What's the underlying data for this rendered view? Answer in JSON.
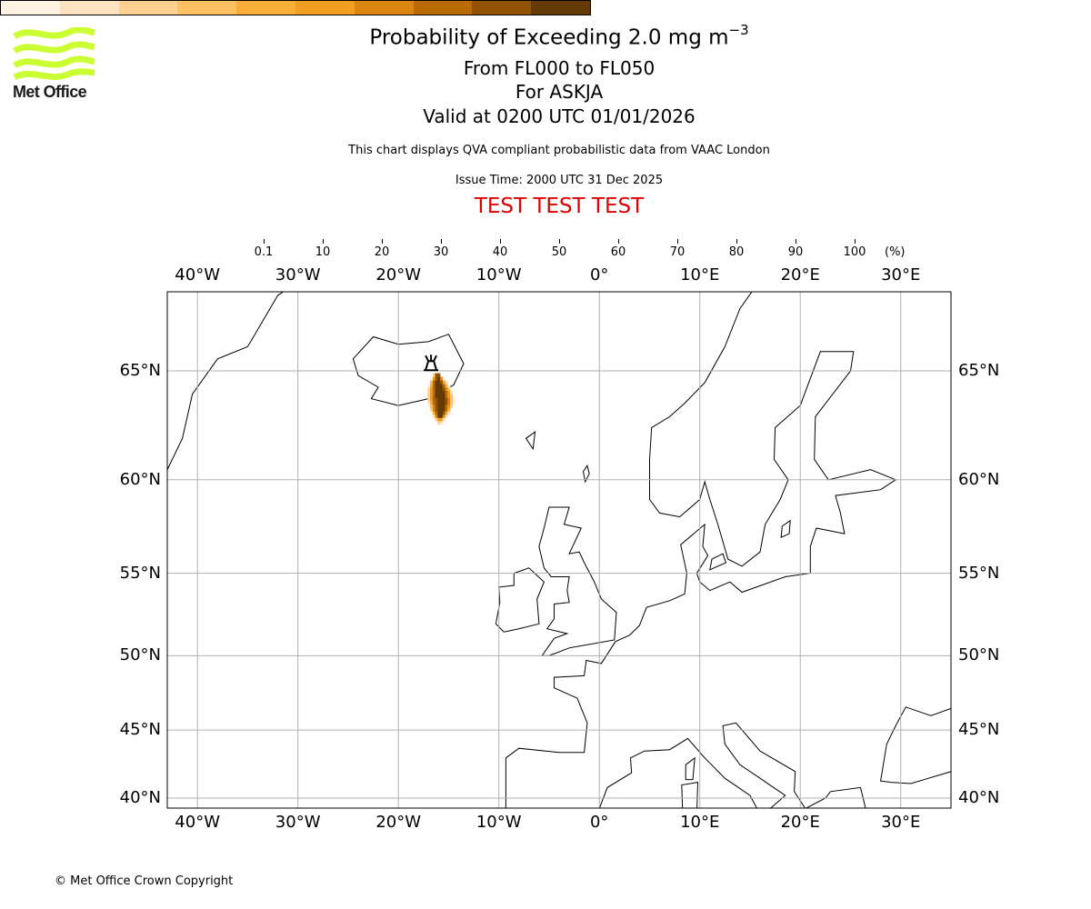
{
  "logo": {
    "text": "Met Office",
    "color": "#ccff33"
  },
  "header": {
    "title_main": "Probability of Exceeding 2.0 mg m",
    "title_sup": "−3",
    "level_range": "From FL000 to FL050",
    "volcano": "For ASKJA",
    "valid_time": "Valid at 0200 UTC 01/01/2026",
    "description": "This chart displays QVA compliant probabilistic data from VAAC London",
    "issue_time": "Issue Time: 2000 UTC 31 Dec 2025",
    "test_banner": "TEST TEST TEST"
  },
  "chart_data": {
    "type": "heatmap",
    "title": "Probability of Exceeding 2.0 mg m−3",
    "colorbar": {
      "unit": "(%)",
      "ticks": [
        "0.1",
        "10",
        "20",
        "30",
        "40",
        "50",
        "60",
        "70",
        "80",
        "90",
        "100"
      ],
      "colors": [
        "#fef3e2",
        "#fde3c1",
        "#fdd08f",
        "#fdc062",
        "#fbad3a",
        "#f29e21",
        "#da8610",
        "#ba6b05",
        "#925404",
        "#633a05"
      ]
    },
    "projection": "Mercator",
    "lon_range": [
      -43,
      35
    ],
    "lat_range": [
      39.2,
      68.3
    ],
    "lon_ticks": [
      -40,
      -30,
      -20,
      -10,
      0,
      10,
      20,
      30
    ],
    "lon_labels": [
      "40°W",
      "30°W",
      "20°W",
      "10°W",
      "0°",
      "10°E",
      "20°E",
      "30°E"
    ],
    "lat_ticks": [
      40,
      45,
      50,
      55,
      60,
      65
    ],
    "lat_labels": [
      "40°N",
      "45°N",
      "50°N",
      "55°N",
      "60°N",
      "65°N"
    ],
    "volcano": {
      "name": "ASKJA",
      "lon": -16.75,
      "lat": 65.03
    },
    "grid": true
  },
  "footer": {
    "copyright": "© Met Office Crown Copyright"
  }
}
